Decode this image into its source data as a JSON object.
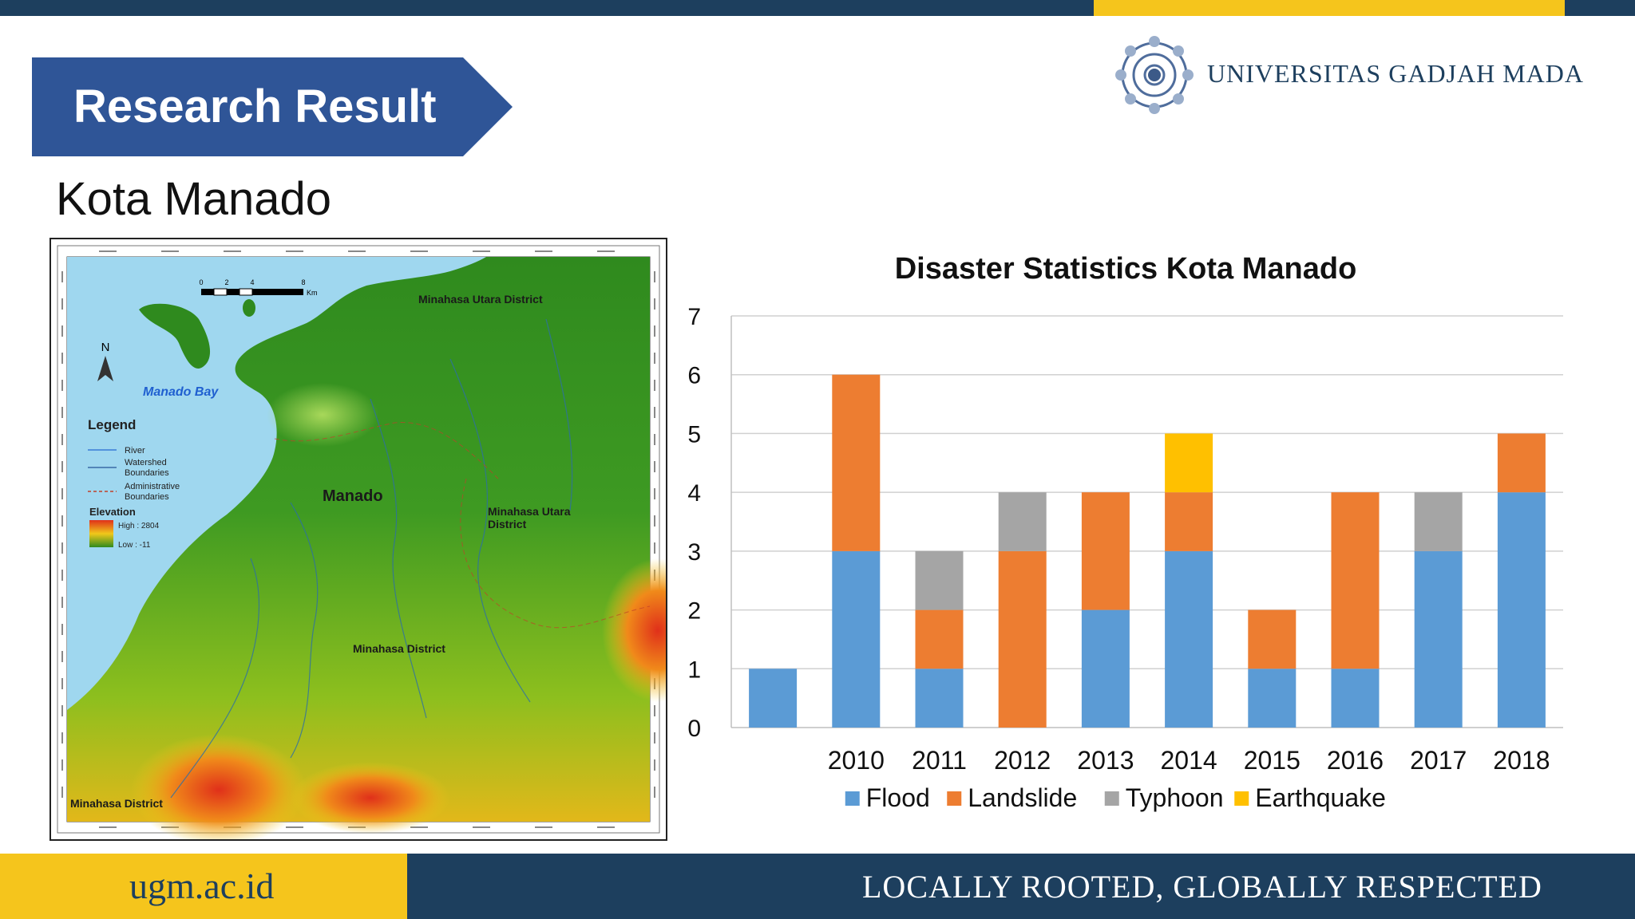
{
  "header": {
    "banner_title": "Research Result",
    "subtitle": "Kota Manado",
    "university": "UNIVERSITAS GADJAH MADA"
  },
  "map": {
    "labels": {
      "utara_top": "Minahasa Utara District",
      "bay": "Manado Bay",
      "city": "Manado",
      "utara_right_1": "Minahasa Utara",
      "utara_right_2": "District",
      "minahasa": "Minahasa District",
      "minahasa_left": "Minahasa District",
      "north": "N"
    },
    "scale": {
      "ticks": [
        "0",
        "2",
        "4",
        "8"
      ],
      "unit": "Km"
    },
    "legend": {
      "title": "Legend",
      "river": "River",
      "watershed_1": "Watershed",
      "watershed_2": "Boundaries",
      "admin_1": "Administrative",
      "admin_2": "Boundaries",
      "elevation": "Elevation",
      "high": "High : 2804",
      "low": "Low : -11"
    }
  },
  "chart_data": {
    "type": "bar",
    "stacked": true,
    "title": "Disaster Statistics Kota Manado",
    "categories": [
      "",
      "2010",
      "2011",
      "2012",
      "2013",
      "2014",
      "2015",
      "2016",
      "2017",
      "2018"
    ],
    "series": [
      {
        "name": "Flood",
        "color": "#5b9bd5",
        "values": [
          1,
          3,
          1,
          0,
          2,
          3,
          1,
          1,
          3,
          4
        ]
      },
      {
        "name": "Landslide",
        "color": "#ed7d31",
        "values": [
          0,
          3,
          1,
          3,
          2,
          1,
          1,
          3,
          0,
          1
        ]
      },
      {
        "name": "Typhoon",
        "color": "#a5a5a5",
        "values": [
          0,
          0,
          1,
          1,
          0,
          0,
          0,
          0,
          1,
          0
        ]
      },
      {
        "name": "Earthquake",
        "color": "#ffc000",
        "values": [
          0,
          0,
          0,
          0,
          0,
          1,
          0,
          0,
          0,
          0
        ]
      }
    ],
    "ylim": [
      0,
      7
    ],
    "yticks": [
      "0",
      "1",
      "2",
      "3",
      "4",
      "5",
      "6",
      "7"
    ],
    "grid": true,
    "legend": "bottom"
  },
  "footer": {
    "url": "ugm.ac.id",
    "motto": "LOCALLY ROOTED, GLOBALLY RESPECTED"
  },
  "colors": {
    "navy": "#1d3f5e",
    "yellow": "#f5c51c",
    "banner_blue": "#2f5597"
  }
}
